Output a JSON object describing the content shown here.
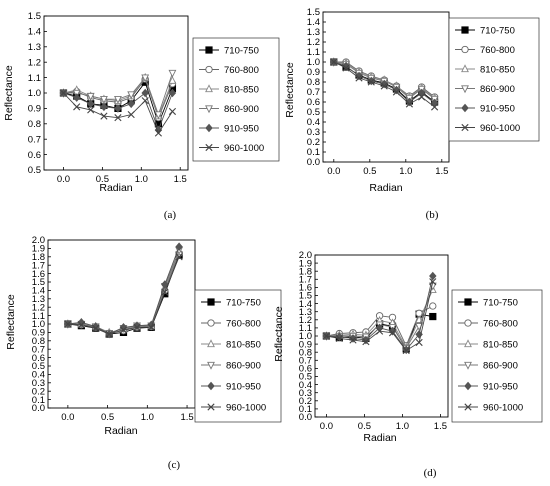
{
  "style": {
    "series_colors": [
      "#000000",
      "#666666",
      "#888888",
      "#777777",
      "#555555",
      "#444444"
    ],
    "series_markers": [
      "square",
      "circle",
      "triangle-up",
      "triangle-down",
      "diamond",
      "x"
    ]
  },
  "chart_data": [
    {
      "type": "line",
      "panel_label": "(a)",
      "xlabel": "Radian",
      "ylabel": "Reflectance",
      "xlim": [
        -0.25,
        1.6
      ],
      "ylim": [
        0.5,
        1.5
      ],
      "xticks": [
        0.0,
        0.5,
        1.0,
        1.5
      ],
      "xtick_labels": [
        "0.0",
        "0.5",
        "1.0",
        "1.5"
      ],
      "yticks": [
        0.5,
        0.6,
        0.7,
        0.8,
        0.9,
        1.0,
        1.1,
        1.2,
        1.3,
        1.4,
        1.5
      ],
      "ytick_labels": [
        "0.5",
        "0.6",
        "0.7",
        "0.8",
        "0.9",
        "1.0",
        "1.1",
        "1.2",
        "1.3",
        "1.4",
        "1.5"
      ],
      "legend_position": "top-right",
      "x": [
        0.0,
        0.17,
        0.35,
        0.52,
        0.7,
        0.87,
        1.05,
        1.22,
        1.4
      ],
      "series": [
        {
          "name": "710-750",
          "values": [
            1.0,
            0.98,
            0.93,
            0.92,
            0.9,
            0.95,
            1.07,
            0.8,
            1.03
          ]
        },
        {
          "name": "760-800",
          "values": [
            1.0,
            1.01,
            0.97,
            0.95,
            0.94,
            0.97,
            1.09,
            0.84,
            1.06
          ]
        },
        {
          "name": "810-850",
          "values": [
            1.0,
            1.02,
            0.98,
            0.96,
            0.95,
            0.98,
            1.1,
            0.85,
            1.08
          ]
        },
        {
          "name": "860-900",
          "values": [
            1.0,
            1.0,
            0.98,
            0.96,
            0.96,
            0.99,
            1.1,
            0.86,
            1.13
          ]
        },
        {
          "name": "910-950",
          "values": [
            1.0,
            0.97,
            0.93,
            0.91,
            0.9,
            0.93,
            1.0,
            0.76,
            1.0
          ]
        },
        {
          "name": "960-1000",
          "values": [
            1.0,
            0.91,
            0.89,
            0.85,
            0.84,
            0.86,
            0.95,
            0.74,
            0.88
          ]
        }
      ]
    },
    {
      "type": "line",
      "panel_label": "(b)",
      "xlabel": "Radian",
      "ylabel": "Reflectance",
      "xlim": [
        -0.15,
        1.6
      ],
      "ylim": [
        0.0,
        1.5
      ],
      "xticks": [
        0.0,
        0.5,
        1.0,
        1.5
      ],
      "xtick_labels": [
        "0.0",
        "0.5",
        "1.0",
        "1.5"
      ],
      "yticks": [
        0.0,
        0.1,
        0.2,
        0.3,
        0.4,
        0.5,
        0.6,
        0.7,
        0.8,
        0.9,
        1.0,
        1.1,
        1.2,
        1.3,
        1.4,
        1.5
      ],
      "ytick_labels": [
        "0.0",
        "0.1",
        "0.2",
        "0.3",
        "0.4",
        "0.5",
        "0.6",
        "0.7",
        "0.8",
        "0.9",
        "1.0",
        "1.1",
        "1.2",
        "1.3",
        "1.4",
        "1.5"
      ],
      "legend_position": "top-right",
      "x": [
        0.0,
        0.17,
        0.35,
        0.52,
        0.7,
        0.87,
        1.05,
        1.22,
        1.4
      ],
      "series": [
        {
          "name": "710-750",
          "values": [
            1.0,
            0.95,
            0.87,
            0.82,
            0.79,
            0.73,
            0.61,
            0.7,
            0.6
          ]
        },
        {
          "name": "760-800",
          "values": [
            1.0,
            1.0,
            0.91,
            0.86,
            0.82,
            0.76,
            0.66,
            0.75,
            0.65
          ]
        },
        {
          "name": "810-850",
          "values": [
            1.0,
            0.99,
            0.9,
            0.85,
            0.82,
            0.76,
            0.65,
            0.74,
            0.64
          ]
        },
        {
          "name": "860-900",
          "values": [
            1.0,
            0.98,
            0.89,
            0.84,
            0.81,
            0.75,
            0.64,
            0.73,
            0.63
          ]
        },
        {
          "name": "910-950",
          "values": [
            1.0,
            0.96,
            0.86,
            0.81,
            0.78,
            0.72,
            0.6,
            0.69,
            0.59
          ]
        },
        {
          "name": "960-1000",
          "values": [
            1.0,
            0.94,
            0.84,
            0.8,
            0.76,
            0.7,
            0.58,
            0.65,
            0.55
          ]
        }
      ]
    },
    {
      "type": "line",
      "panel_label": "(c)",
      "xlabel": "Radian",
      "ylabel": "Reflectance",
      "xlim": [
        -0.25,
        1.6
      ],
      "ylim": [
        0.0,
        2.0
      ],
      "xticks": [
        0.0,
        0.5,
        1.0,
        1.5
      ],
      "xtick_labels": [
        "0.0",
        "0.5",
        "1.0",
        "1.5"
      ],
      "yticks": [
        0.0,
        0.1,
        0.2,
        0.3,
        0.4,
        0.5,
        0.6,
        0.7,
        0.8,
        0.9,
        1.0,
        1.1,
        1.2,
        1.3,
        1.4,
        1.5,
        1.6,
        1.7,
        1.8,
        1.9,
        2.0
      ],
      "ytick_labels": [
        "0.0",
        "0.1",
        "0.2",
        "0.3",
        "0.4",
        "0.5",
        "0.6",
        "0.7",
        "0.8",
        "0.9",
        "1.0",
        "1.1",
        "1.2",
        "1.3",
        "1.4",
        "1.5",
        "1.6",
        "1.7",
        "1.8",
        "1.9",
        "2.0"
      ],
      "legend_position": "right",
      "x": [
        0.0,
        0.17,
        0.35,
        0.52,
        0.7,
        0.87,
        1.05,
        1.22,
        1.4
      ],
      "series": [
        {
          "name": "710-750",
          "values": [
            1.0,
            0.98,
            0.95,
            0.88,
            0.9,
            0.95,
            0.96,
            1.36,
            1.82
          ]
        },
        {
          "name": "760-800",
          "values": [
            1.0,
            0.99,
            0.96,
            0.89,
            0.92,
            0.96,
            0.97,
            1.4,
            1.84
          ]
        },
        {
          "name": "810-850",
          "values": [
            1.0,
            1.0,
            0.97,
            0.9,
            0.94,
            0.97,
            0.98,
            1.43,
            1.86
          ]
        },
        {
          "name": "860-900",
          "values": [
            1.0,
            1.0,
            0.97,
            0.89,
            0.95,
            0.98,
            0.98,
            1.45,
            1.88
          ]
        },
        {
          "name": "910-950",
          "values": [
            1.0,
            1.02,
            0.97,
            0.88,
            0.96,
            0.98,
            0.99,
            1.47,
            1.92
          ]
        },
        {
          "name": "960-1000",
          "values": [
            1.0,
            0.99,
            0.95,
            0.88,
            0.93,
            0.96,
            0.96,
            1.38,
            1.8
          ]
        }
      ]
    },
    {
      "type": "line",
      "panel_label": "(d)",
      "xlabel": "Radian",
      "ylabel": "Reflectance",
      "xlim": [
        -0.15,
        1.6
      ],
      "ylim": [
        0.0,
        2.0
      ],
      "xticks": [
        0.0,
        0.5,
        1.0,
        1.5
      ],
      "xtick_labels": [
        "0.0",
        "0.5",
        "1.0",
        "1.5"
      ],
      "yticks": [
        0.0,
        0.1,
        0.2,
        0.3,
        0.4,
        0.5,
        0.6,
        0.7,
        0.8,
        0.9,
        1.0,
        1.1,
        1.2,
        1.3,
        1.4,
        1.5,
        1.6,
        1.7,
        1.8,
        1.9,
        2.0
      ],
      "ytick_labels": [
        "0.0",
        "0.1",
        "0.2",
        "0.3",
        "0.4",
        "0.5",
        "0.6",
        "0.7",
        "0.8",
        "0.9",
        "1.0",
        "1.1",
        "1.2",
        "1.3",
        "1.4",
        "1.5",
        "1.6",
        "1.7",
        "1.8",
        "1.9",
        "2.0"
      ],
      "legend_position": "right",
      "x": [
        0.0,
        0.17,
        0.35,
        0.52,
        0.7,
        0.87,
        1.05,
        1.22,
        1.4
      ],
      "series": [
        {
          "name": "710-750",
          "values": [
            1.0,
            0.98,
            0.99,
            0.97,
            1.15,
            1.12,
            0.84,
            1.27,
            1.24
          ]
        },
        {
          "name": "760-800",
          "values": [
            1.0,
            1.03,
            1.04,
            1.05,
            1.25,
            1.23,
            0.88,
            1.28,
            1.37
          ]
        },
        {
          "name": "810-850",
          "values": [
            1.0,
            1.01,
            1.02,
            1.01,
            1.19,
            1.16,
            0.86,
            1.2,
            1.57
          ]
        },
        {
          "name": "860-900",
          "values": [
            1.0,
            1.0,
            1.0,
            0.99,
            1.14,
            1.11,
            0.85,
            1.12,
            1.62
          ]
        },
        {
          "name": "910-950",
          "values": [
            1.0,
            0.99,
            0.97,
            0.95,
            1.1,
            1.06,
            0.83,
            1.02,
            1.74
          ]
        },
        {
          "name": "960-1000",
          "values": [
            1.0,
            0.97,
            0.95,
            0.93,
            1.06,
            1.04,
            0.82,
            0.92,
            1.67
          ]
        }
      ]
    }
  ]
}
